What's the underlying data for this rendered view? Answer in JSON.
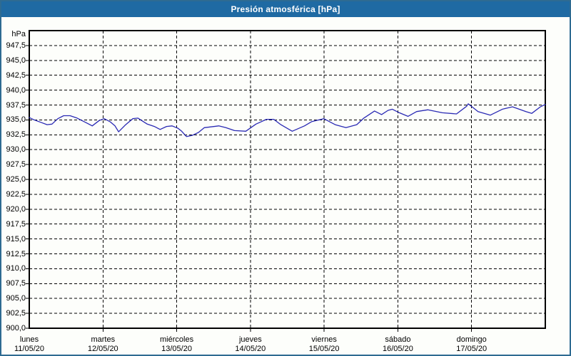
{
  "window": {
    "title": "Presión atmosférica [hPa]",
    "titlebar_color": "#1f6aa3",
    "border_color": "#2e6b92",
    "background_color": "#fdfefb"
  },
  "chart_data": {
    "type": "line",
    "title": "Presión atmosférica [hPa]",
    "ylabel_unit": "hPa",
    "xlabel": "",
    "ylim": [
      900,
      950
    ],
    "ytick_step": 2.5,
    "ytick_labels": [
      "947,5",
      "945,0",
      "942,5",
      "940,0",
      "937,5",
      "935,0",
      "932,5",
      "930,0",
      "927,5",
      "925,0",
      "922,5",
      "920,0",
      "917,5",
      "915,0",
      "912,5",
      "910,0",
      "907,5",
      "905,0",
      "902,5",
      "900,0"
    ],
    "grid": "dashed",
    "legend": "none",
    "series_color": "#2a2ab4",
    "grid_color": "#000000",
    "x_total_hours": 168,
    "x_days": [
      {
        "name": "lunes",
        "date": "11/05/20"
      },
      {
        "name": "martes",
        "date": "12/05/20"
      },
      {
        "name": "miércoles",
        "date": "13/05/20"
      },
      {
        "name": "jueves",
        "date": "14/05/20"
      },
      {
        "name": "viernes",
        "date": "15/05/20"
      },
      {
        "name": "sábado",
        "date": "16/05/20"
      },
      {
        "name": "domingo",
        "date": "17/05/20"
      }
    ],
    "series": [
      {
        "name": "Presión atmosférica",
        "x_hours": [
          0,
          1.6,
          3.7,
          5.8,
          7.4,
          9.3,
          11.2,
          13.3,
          15.6,
          17.9,
          20.5,
          22.8,
          24.4,
          26.3,
          27.9,
          29.1,
          31.4,
          33.7,
          35.4,
          38.4,
          40.7,
          42.6,
          44.7,
          46.5,
          48.4,
          49.6,
          51.2,
          53.1,
          55.1,
          57,
          61.7,
          64,
          66.8,
          70.5,
          73.8,
          77.2,
          79.6,
          81.9,
          85.6,
          89.6,
          91.9,
          95.9,
          99.6,
          103.1,
          106.6,
          108.9,
          112.4,
          114.7,
          116.8,
          118.2,
          120.5,
          123.3,
          126.1,
          129.8,
          134.5,
          139.1,
          142.4,
          142.9,
          146.1,
          150.1,
          154,
          157.3,
          161.7,
          163.6,
          166.4,
          168
        ],
        "values": [
          935.4,
          935,
          934.6,
          934.2,
          934.3,
          935.2,
          935.7,
          935.7,
          935.3,
          934.7,
          934,
          934.9,
          935.2,
          934.7,
          934,
          933,
          934.2,
          935.2,
          935.3,
          934.3,
          933.9,
          933.4,
          933.9,
          934,
          933.6,
          933.1,
          932.2,
          932.4,
          932.9,
          933.7,
          934,
          933.7,
          933.2,
          933.1,
          934.3,
          935.1,
          935.1,
          934.2,
          933.1,
          934,
          934.7,
          935.2,
          934.2,
          933.7,
          934.2,
          935.3,
          936.5,
          935.9,
          936.6,
          936.8,
          936.2,
          935.6,
          936.4,
          936.7,
          936.2,
          936,
          937.3,
          937.7,
          936.4,
          935.8,
          936.8,
          937.2,
          936.4,
          936.1,
          937.2,
          937.6
        ]
      }
    ]
  }
}
